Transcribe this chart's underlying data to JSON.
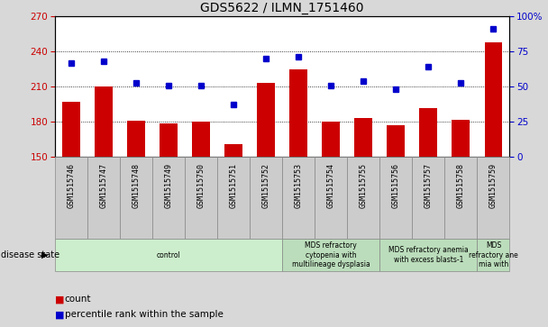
{
  "title": "GDS5622 / ILMN_1751460",
  "samples": [
    "GSM1515746",
    "GSM1515747",
    "GSM1515748",
    "GSM1515749",
    "GSM1515750",
    "GSM1515751",
    "GSM1515752",
    "GSM1515753",
    "GSM1515754",
    "GSM1515755",
    "GSM1515756",
    "GSM1515757",
    "GSM1515758",
    "GSM1515759"
  ],
  "counts": [
    197,
    210,
    181,
    179,
    180,
    161,
    213,
    225,
    180,
    183,
    177,
    192,
    182,
    248
  ],
  "percentiles": [
    67,
    68,
    53,
    51,
    51,
    37,
    70,
    71,
    51,
    54,
    48,
    64,
    53,
    91
  ],
  "ylim_left": [
    150,
    270
  ],
  "ylim_right": [
    0,
    100
  ],
  "yticks_left": [
    150,
    180,
    210,
    240,
    270
  ],
  "yticks_right": [
    0,
    25,
    50,
    75,
    100
  ],
  "bar_color": "#cc0000",
  "marker_color": "#0000cc",
  "bg_color": "#d8d8d8",
  "plot_bg": "#ffffff",
  "grid_color": "#000000",
  "disease_groups": [
    {
      "label": "control",
      "start": 0,
      "end": 7,
      "color": "#cceecc"
    },
    {
      "label": "MDS refractory\ncytopenia with\nmultilineage dysplasia",
      "start": 7,
      "end": 10,
      "color": "#bbddbb"
    },
    {
      "label": "MDS refractory anemia\nwith excess blasts-1",
      "start": 10,
      "end": 13,
      "color": "#bbddbb"
    },
    {
      "label": "MDS\nrefractory ane\nmia with",
      "start": 13,
      "end": 14,
      "color": "#bbddbb"
    }
  ],
  "disease_state_label": "disease state",
  "legend_count_label": "count",
  "legend_percentile_label": "percentile rank within the sample"
}
